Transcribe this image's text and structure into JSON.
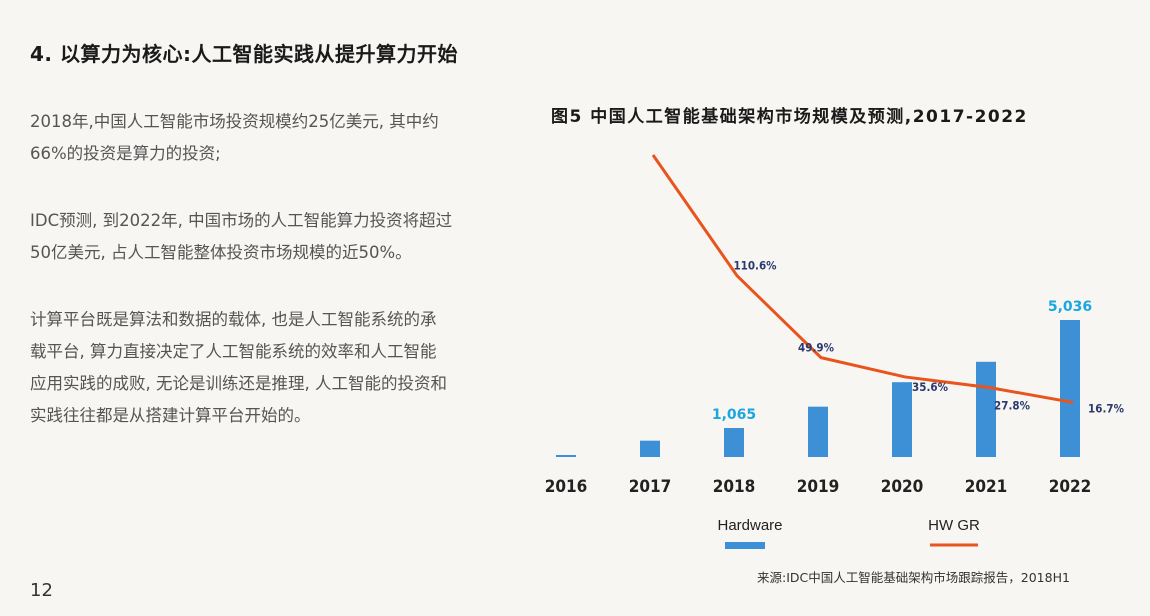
{
  "header": {
    "title": "4. 以算力为核心:人工智能实践从提升算力开始"
  },
  "paragraphs": [
    [
      "2018年,中国人工智能市场投资规模约25亿美元, 其中约",
      "66%的投资是算力的投资;"
    ],
    [
      "IDC预测, 到2022年, 中国市场的人工智能算力投资将超过",
      "50亿美元, 占人工智能整体投资市场规模的近50%。"
    ],
    [
      "计算平台既是算法和数据的载体, 也是人工智能系统的承",
      "载平台, 算力直接决定了人工智能系统的效率和人工智能",
      "应用实践的成败, 无论是训练还是推理, 人工智能的投资和",
      "实践往往都是从搭建计算平台开始的。"
    ]
  ],
  "page_number": "12",
  "source": "来源:IDC中国人工智能基础架构市场跟踪报告，2018H1",
  "colors": {
    "bar": "#3d8fd6",
    "line": "#e8541c",
    "bar_label": "#1aa6df",
    "line_label": "#2a3a6e"
  },
  "chart_data": {
    "type": "bar",
    "title": "图5 中国人工智能基础架构市场规模及预测,2017-2022",
    "categories": [
      "2016",
      "2017",
      "2018",
      "2019",
      "2020",
      "2021",
      "2022"
    ],
    "series": [
      {
        "name": "Hardware",
        "type": "bar",
        "values": [
          30,
          600,
          1065,
          1850,
          2750,
          3500,
          5036
        ],
        "labels": [
          "",
          "",
          "1,065",
          "",
          "",
          "",
          "5,036"
        ]
      },
      {
        "name": "HW GR",
        "type": "line",
        "values": [
          null,
          230,
          110.6,
          49.9,
          35.6,
          27.8,
          16.7
        ],
        "labels": [
          "",
          "",
          "110.6%",
          "49.9%",
          "35.6%",
          "27.8%",
          "16.7%"
        ]
      }
    ]
  }
}
